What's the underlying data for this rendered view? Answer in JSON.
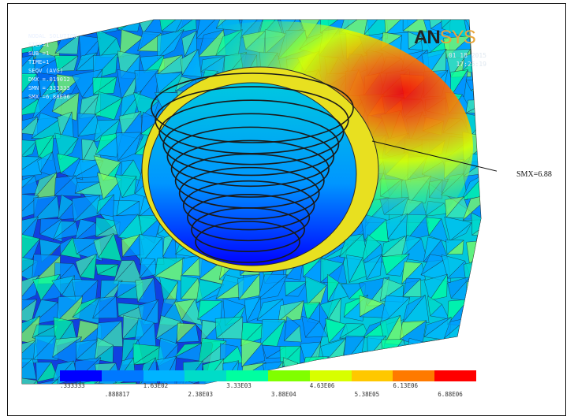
{
  "header": {
    "lines": [
      "NODAL SOLUTION",
      "STEP=1",
      "SUB =1",
      "TIME=1",
      "SEQV (AVG)",
      "DMX =.019012",
      "SMN =.333333",
      "SMX =6.88E06"
    ]
  },
  "logo": {
    "part_a": "AN",
    "part_b": "SYS"
  },
  "date": {
    "date": "01 18 2015",
    "time": "17:25:19"
  },
  "callout": {
    "label": "SMX=6.88"
  },
  "legend": {
    "colors": [
      "#0000ff",
      "#0078ff",
      "#00b4ff",
      "#00dcc8",
      "#00ffa0",
      "#80ff00",
      "#d8ff00",
      "#ffc800",
      "#ff7a00",
      "#ff0000"
    ],
    "top_labels": [
      ".333333",
      "1.63E02",
      "3.33E03",
      "4.63E06",
      "6.13E06"
    ],
    "bottom_labels": [
      ".888817",
      "2.38E03",
      "3.88E04",
      "5.38E05",
      "6.88E06"
    ]
  }
}
